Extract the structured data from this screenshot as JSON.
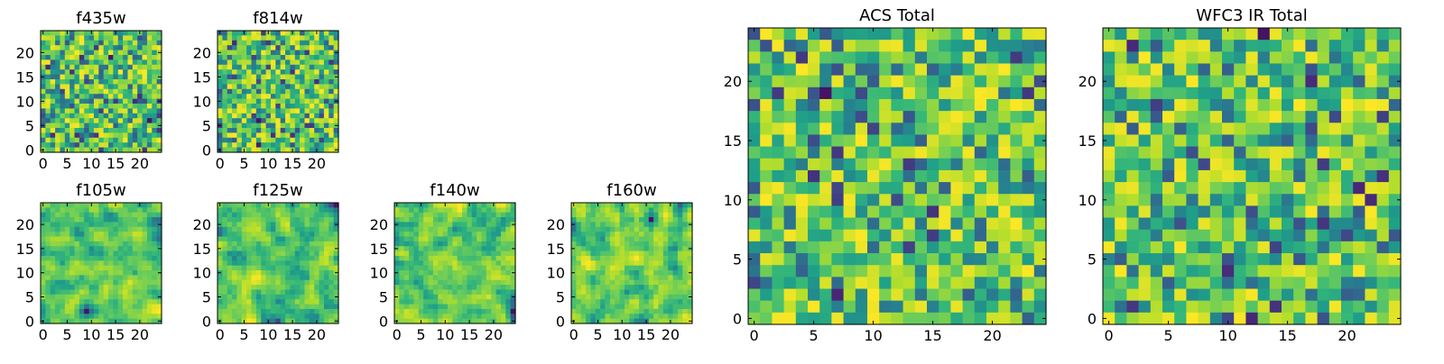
{
  "chart_data": [
    {
      "type": "heatmap",
      "title": "f435w",
      "xticks": [
        0,
        5,
        10,
        15,
        20
      ],
      "yticks": [
        0,
        5,
        10,
        15,
        20
      ],
      "xlim": [
        0,
        24
      ],
      "ylim": [
        0,
        24
      ],
      "grid_size": 25,
      "colormap": "viridis",
      "seed": 11
    },
    {
      "type": "heatmap",
      "title": "f814w",
      "xticks": [
        0,
        5,
        10,
        15,
        20
      ],
      "yticks": [
        0,
        5,
        10,
        15,
        20
      ],
      "xlim": [
        0,
        24
      ],
      "ylim": [
        0,
        24
      ],
      "grid_size": 25,
      "colormap": "viridis",
      "seed": 23
    },
    {
      "type": "heatmap",
      "title": "f105w",
      "xticks": [
        0,
        5,
        10,
        15,
        20
      ],
      "yticks": [
        0,
        5,
        10,
        15,
        20
      ],
      "xlim": [
        0,
        24
      ],
      "ylim": [
        0,
        24
      ],
      "grid_size": 25,
      "colormap": "viridis",
      "seed": 37,
      "smooth": true
    },
    {
      "type": "heatmap",
      "title": "f125w",
      "xticks": [
        0,
        5,
        10,
        15,
        20
      ],
      "yticks": [
        0,
        5,
        10,
        15,
        20
      ],
      "xlim": [
        0,
        24
      ],
      "ylim": [
        0,
        24
      ],
      "grid_size": 25,
      "colormap": "viridis",
      "seed": 41,
      "smooth": true
    },
    {
      "type": "heatmap",
      "title": "f140w",
      "xticks": [
        0,
        5,
        10,
        15,
        20
      ],
      "yticks": [
        0,
        5,
        10,
        15,
        20
      ],
      "xlim": [
        0,
        24
      ],
      "ylim": [
        0,
        24
      ],
      "grid_size": 25,
      "colormap": "viridis",
      "seed": 53,
      "smooth": true
    },
    {
      "type": "heatmap",
      "title": "f160w",
      "xticks": [
        0,
        5,
        10,
        15,
        20
      ],
      "yticks": [
        0,
        5,
        10,
        15,
        20
      ],
      "xlim": [
        0,
        24
      ],
      "ylim": [
        0,
        24
      ],
      "grid_size": 25,
      "colormap": "viridis",
      "seed": 67,
      "smooth": true
    },
    {
      "type": "heatmap",
      "title": "ACS Total",
      "xticks": [
        0,
        5,
        10,
        15,
        20
      ],
      "yticks": [
        0,
        5,
        10,
        15,
        20
      ],
      "xlim": [
        0,
        24
      ],
      "ylim": [
        0,
        24
      ],
      "grid_size": 25,
      "colormap": "viridis",
      "seed": 79
    },
    {
      "type": "heatmap",
      "title": "WFC3 IR Total",
      "xticks": [
        0,
        5,
        10,
        15,
        20
      ],
      "yticks": [
        0,
        5,
        10,
        15,
        20
      ],
      "xlim": [
        0,
        24
      ],
      "ylim": [
        0,
        24
      ],
      "grid_size": 25,
      "colormap": "viridis",
      "seed": 97
    }
  ],
  "colors": {
    "viridis_dark": "#440154",
    "viridis_mid": "#21918c",
    "viridis_green": "#5ec962",
    "viridis_yellow": "#fde725",
    "axis_color": "#000000",
    "background": "#ffffff"
  }
}
